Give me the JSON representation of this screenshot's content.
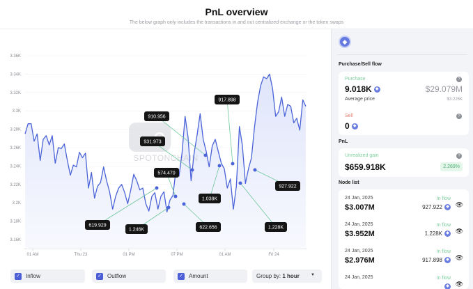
{
  "header": {
    "title": "PnL overview",
    "subtitle": "The below graph only includes the transactions in and out centralized exchange or the token swaps"
  },
  "watermark": "SPOTONCHAIN",
  "chart_data": {
    "type": "line",
    "title": "",
    "xlabel": "",
    "ylabel": "",
    "ylim": [
      3160,
      3360
    ],
    "y_ticks": [
      "3.16K",
      "3.18K",
      "3.2K",
      "3.22K",
      "3.24K",
      "3.26K",
      "3.28K",
      "3.3K",
      "3.32K",
      "3.34K",
      "3.36K"
    ],
    "x_ticks": [
      "01 AM",
      "Thu 23",
      "01 PM",
      "07 PM",
      "01 AM",
      "Fri 24"
    ],
    "grid": true,
    "colors": {
      "line": "#4a63d8",
      "fill": "#eef1fc",
      "node_line": "#6cc69a"
    },
    "values": [
      3275,
      3286,
      3286,
      3267,
      3275,
      3246,
      3269,
      3273,
      3263,
      3273,
      3243,
      3260,
      3259,
      3264,
      3246,
      3230,
      3241,
      3239,
      3255,
      3249,
      3254,
      3216,
      3233,
      3205,
      3218,
      3222,
      3239,
      3224,
      3212,
      3193,
      3207,
      3216,
      3220,
      3211,
      3199,
      3214,
      3231,
      3224,
      3214,
      3216,
      3199,
      3191,
      3207,
      3211,
      3193,
      3207,
      3212,
      3190,
      3203,
      3208,
      3237,
      3229,
      3254,
      3294,
      3271,
      3224,
      3254,
      3274,
      3297,
      3269,
      3256,
      3239,
      3262,
      3269,
      3256,
      3243,
      3237,
      3216,
      3226,
      3193,
      3218,
      3283,
      3262,
      3221,
      3237,
      3249,
      3282,
      3309,
      3327,
      3337,
      3335,
      3340,
      3324,
      3294,
      3299,
      3315,
      3294,
      3307,
      3305,
      3287,
      3292,
      3279,
      3312,
      3305
    ],
    "nodes": [
      "619.929",
      "1.246K",
      "574.470",
      "622.656",
      "931.973",
      "910.956",
      "1.038K",
      "917.898",
      "1.228K",
      "927.922"
    ]
  },
  "filters": [
    {
      "label": "Inflow",
      "checked": true
    },
    {
      "label": "Outflow",
      "checked": true
    },
    {
      "label": "Amount",
      "checked": true
    }
  ],
  "group_by": {
    "label": "Group by:",
    "value": "1 hour"
  },
  "side": {
    "token_icon": "eth-icon",
    "flow_title": "Purchase/Sell flow",
    "purchase": {
      "label": "Purchase",
      "amount": "9.018K",
      "usd": "$29.079M",
      "avg_label": "Average price",
      "avg_value": "$3.225K"
    },
    "sell": {
      "label": "Sell",
      "amount": "0"
    },
    "pnl_title": "PnL",
    "pnl": {
      "label": "Unrealized gain",
      "value": "$659.918K",
      "pct": "2.269%"
    },
    "node_title": "Node list",
    "nodes": [
      {
        "date": "24 Jan, 2025",
        "usd": "$3.007M",
        "type": "In flow",
        "amount": "927.922"
      },
      {
        "date": "24 Jan, 2025",
        "usd": "$3.952M",
        "type": "In flow",
        "amount": "1.228K"
      },
      {
        "date": "24 Jan, 2025",
        "usd": "$2.976M",
        "type": "In flow",
        "amount": "917.898"
      },
      {
        "date": "24 Jan, 2025",
        "usd": "",
        "type": "In flow",
        "amount": ""
      }
    ],
    "colors": {
      "green": "#7ccf9c",
      "red": "#e57c6f",
      "badge_bg": "#e3f6e9"
    }
  }
}
